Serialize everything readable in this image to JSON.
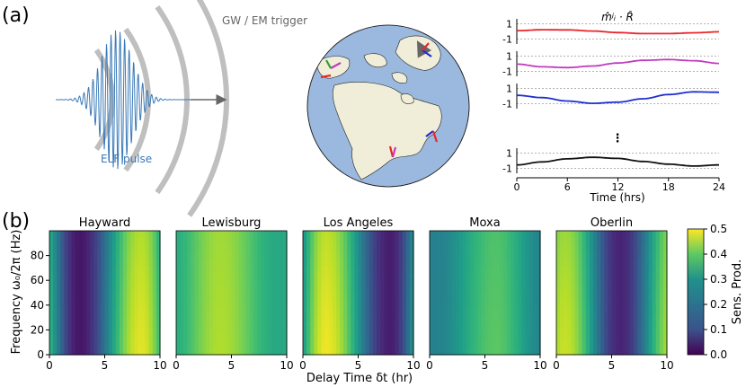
{
  "panel_labels": {
    "a": "(a)",
    "b": "(b)"
  },
  "schematic": {
    "trigger_label": "GW / EM trigger",
    "pulse_label": "ELF pulse",
    "pulse_color": "#3a7ab8",
    "ring_color": "#8a8a8a",
    "arrow_color": "#666666"
  },
  "globe": {
    "ocean_color": "#9bb9df",
    "land_color": "#f0edd9",
    "sites": [
      "Lewisburg",
      "Hayward",
      "Los Angeles",
      "Moxa",
      "Oberlin"
    ]
  },
  "chart_data": [
    {
      "type": "line",
      "title": "m̂ʲᵢ · R̂",
      "xlabel": "Time (hrs)",
      "xlim": [
        0,
        24
      ],
      "xticks": [
        "0",
        "6",
        "12",
        "18",
        "24"
      ],
      "ylim": [
        -1,
        1
      ],
      "yticks": [
        "1",
        "-1"
      ],
      "ellipsis": "⋮",
      "series": [
        {
          "color": "#e8262a",
          "x": [
            0,
            3,
            6,
            9,
            12,
            15,
            18,
            21,
            24
          ],
          "values": [
            0.1,
            0.22,
            0.2,
            0.05,
            -0.15,
            -0.28,
            -0.28,
            -0.18,
            -0.05
          ]
        },
        {
          "color": "#c03bc0",
          "x": [
            0,
            3,
            6,
            9,
            12,
            15,
            18,
            21,
            24
          ],
          "values": [
            -0.05,
            -0.4,
            -0.5,
            -0.3,
            0.1,
            0.45,
            0.55,
            0.4,
            0.05
          ]
        },
        {
          "color": "#1f2fcf",
          "x": [
            0,
            3,
            6,
            9,
            12,
            15,
            18,
            21,
            24
          ],
          "values": [
            0.1,
            -0.2,
            -0.65,
            -0.95,
            -0.8,
            -0.35,
            0.2,
            0.55,
            0.5
          ]
        },
        {
          "color": "#111111",
          "x": [
            0,
            3,
            6,
            9,
            12,
            15,
            18,
            21,
            24
          ],
          "values": [
            -0.55,
            -0.15,
            0.25,
            0.45,
            0.3,
            -0.1,
            -0.45,
            -0.7,
            -0.55
          ]
        }
      ]
    },
    {
      "type": "heatmap",
      "xlabel": "Delay Time δt (hr)",
      "ylabel": "Frequency ω₀/2π (Hz)",
      "xlim": [
        0,
        10
      ],
      "ylim": [
        0,
        100
      ],
      "xticks": [
        "0",
        "5",
        "10"
      ],
      "yticks": [
        "0",
        "20",
        "40",
        "60",
        "80"
      ],
      "colorbar": {
        "label": "Sens. Prod.",
        "range": [
          0,
          0.5
        ],
        "ticks": [
          "0.0",
          "0.1",
          "0.2",
          "0.3",
          "0.4",
          "0.5"
        ]
      },
      "panels": [
        {
          "name": "Hayward",
          "min_delay": 2.7,
          "max_delay": 8.3,
          "high": 0.48,
          "low": 0.03
        },
        {
          "name": "Lewisburg",
          "min_delay": 9.3,
          "max_delay": 4.0,
          "high": 0.44,
          "low": 0.3
        },
        {
          "name": "Los Angeles",
          "min_delay": 7.9,
          "max_delay": 2.1,
          "high": 0.49,
          "low": 0.04
        },
        {
          "name": "Moxa",
          "min_delay": 0.5,
          "max_delay": 6.0,
          "high": 0.37,
          "low": 0.22
        },
        {
          "name": "Oberlin",
          "min_delay": 5.8,
          "max_delay": 0.8,
          "high": 0.46,
          "low": 0.05
        }
      ]
    }
  ]
}
